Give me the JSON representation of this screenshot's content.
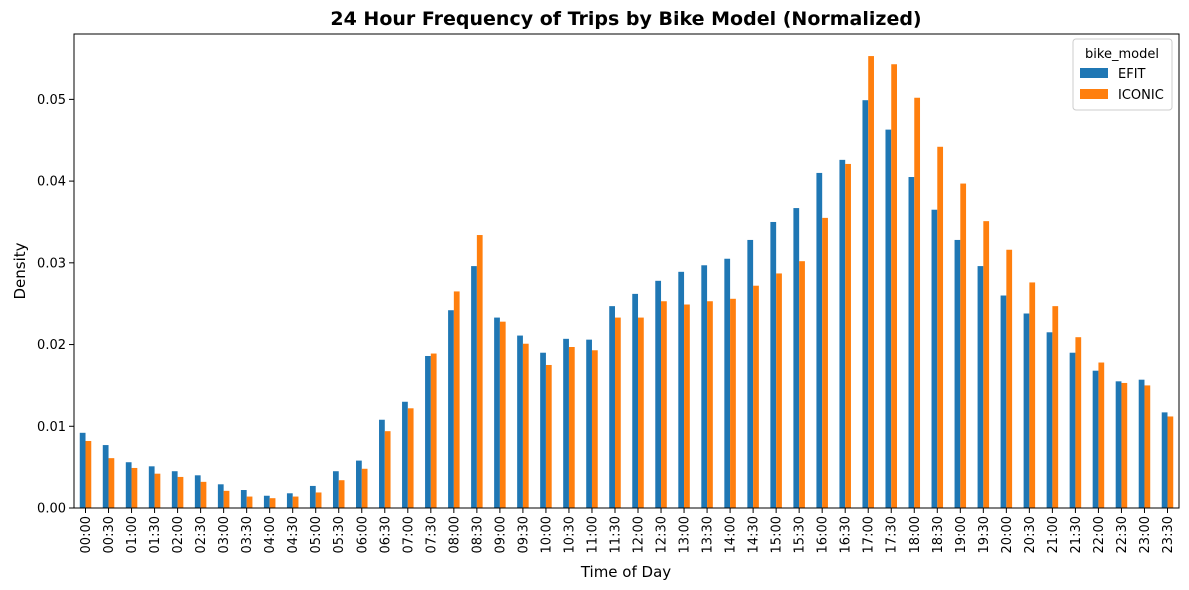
{
  "chart_data": {
    "type": "bar",
    "title": "24 Hour Frequency of Trips by Bike Model (Normalized)",
    "xlabel": "Time of Day",
    "ylabel": "Density",
    "ylim": [
      0,
      0.058
    ],
    "yticks": [
      "0.00",
      "0.01",
      "0.02",
      "0.03",
      "0.04",
      "0.05"
    ],
    "grid": false,
    "legend": {
      "title": "bike_model",
      "placement": "top-right"
    },
    "categories": [
      "00:00",
      "00:30",
      "01:00",
      "01:30",
      "02:00",
      "02:30",
      "03:00",
      "03:30",
      "04:00",
      "04:30",
      "05:00",
      "05:30",
      "06:00",
      "06:30",
      "07:00",
      "07:30",
      "08:00",
      "08:30",
      "09:00",
      "09:30",
      "10:00",
      "10:30",
      "11:00",
      "11:30",
      "12:00",
      "12:30",
      "13:00",
      "13:30",
      "14:00",
      "14:30",
      "15:00",
      "15:30",
      "16:00",
      "16:30",
      "17:00",
      "17:30",
      "18:00",
      "18:30",
      "19:00",
      "19:30",
      "20:00",
      "20:30",
      "21:00",
      "21:30",
      "22:00",
      "22:30",
      "23:00",
      "23:30"
    ],
    "series": [
      {
        "name": "EFIT",
        "color": "#1f77b4",
        "values": [
          0.0092,
          0.0077,
          0.0056,
          0.0051,
          0.0045,
          0.004,
          0.0029,
          0.0022,
          0.0015,
          0.0018,
          0.0027,
          0.0045,
          0.0058,
          0.0108,
          0.013,
          0.0186,
          0.0242,
          0.0296,
          0.0233,
          0.0211,
          0.019,
          0.0207,
          0.0206,
          0.0247,
          0.0262,
          0.0278,
          0.0289,
          0.0297,
          0.0305,
          0.0328,
          0.035,
          0.0367,
          0.041,
          0.0426,
          0.0499,
          0.0463,
          0.0405,
          0.0365,
          0.0328,
          0.0296,
          0.026,
          0.0238,
          0.0215,
          0.019,
          0.0168,
          0.0155,
          0.0157,
          0.0117
        ]
      },
      {
        "name": "ICONIC",
        "color": "#ff7f0e",
        "values": [
          0.0082,
          0.0061,
          0.0049,
          0.0042,
          0.0038,
          0.0032,
          0.0021,
          0.0014,
          0.0012,
          0.0014,
          0.0019,
          0.0034,
          0.0048,
          0.0094,
          0.0122,
          0.0189,
          0.0265,
          0.0334,
          0.0228,
          0.0201,
          0.0175,
          0.0197,
          0.0193,
          0.0233,
          0.0233,
          0.0253,
          0.0249,
          0.0253,
          0.0256,
          0.0272,
          0.0287,
          0.0302,
          0.0355,
          0.0421,
          0.0553,
          0.0543,
          0.0502,
          0.0442,
          0.0397,
          0.0351,
          0.0316,
          0.0276,
          0.0247,
          0.0209,
          0.0178,
          0.0153,
          0.015,
          0.0112
        ]
      }
    ]
  }
}
